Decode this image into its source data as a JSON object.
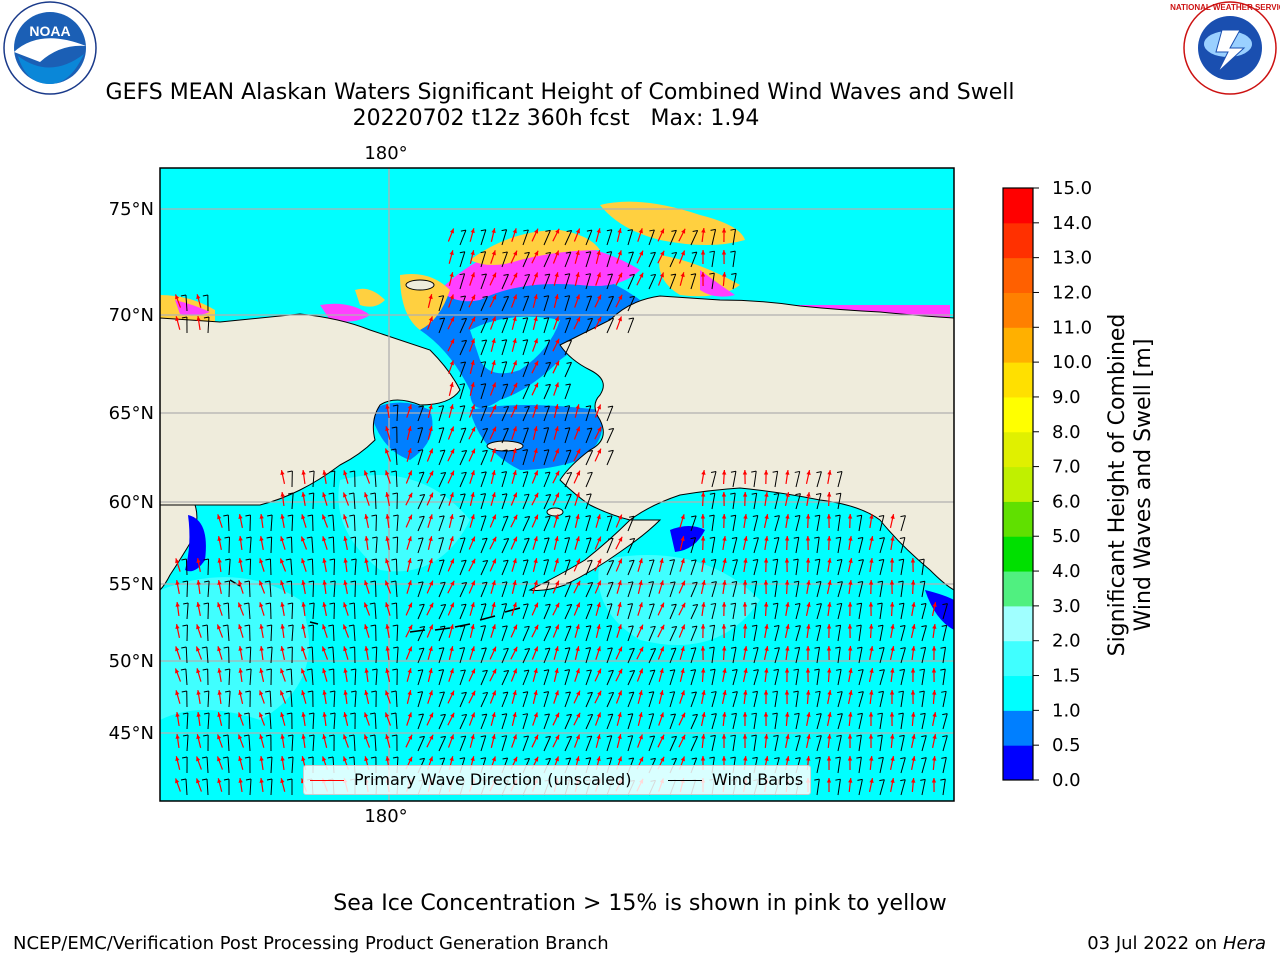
{
  "title": {
    "line1": "GEFS MEAN Alaskan Waters Significant Height of Combined Wind Waves and Swell",
    "line2": "20220702 t12z 360h fcst   Max: 1.94"
  },
  "logos": {
    "noaa_text": "NOAA",
    "nws_text": "NATIONAL WEATHER SERVICE"
  },
  "map": {
    "lat_ticks": [
      "75°N",
      "70°N",
      "65°N",
      "60°N",
      "55°N",
      "50°N",
      "45°N"
    ],
    "lon_tick_top": "180°",
    "lon_tick_bottom": "180°",
    "colors": {
      "land": "#efecdc",
      "ocean": "#00ffff",
      "ocean_light": "#40ffff",
      "shallow": "#007fff",
      "edge": "#0000ff",
      "ice_pink": "#ff40ff",
      "ice_yellow": "#ffd040",
      "grid": "#b0b0b0"
    }
  },
  "legend": {
    "wave_label": "Primary Wave Direction (unscaled)",
    "wind_label": "Wind Barbs",
    "wave_color": "#ff0000",
    "wind_color": "#000000"
  },
  "colorbar": {
    "label_line1": "Significant Height of Combined",
    "label_line2": "Wind Waves and Swell [m]",
    "ticks": [
      "0.0",
      "0.5",
      "1.0",
      "1.5",
      "2.0",
      "3.0",
      "4.0",
      "5.0",
      "6.0",
      "7.0",
      "8.0",
      "9.0",
      "10.0",
      "11.0",
      "12.0",
      "13.0",
      "14.0",
      "15.0"
    ],
    "colors": [
      "#0000ff",
      "#007fff",
      "#00ffff",
      "#40ffff",
      "#a0ffff",
      "#50f080",
      "#00e000",
      "#60e000",
      "#c0f000",
      "#e0f000",
      "#ffff00",
      "#ffe000",
      "#ffb000",
      "#ff8000",
      "#ff6000",
      "#ff3000",
      "#ff0000"
    ]
  },
  "footnote": "Sea Ice Concentration > 15% is shown in pink to yellow",
  "footer": {
    "left": "NCEP/EMC/Verification Post Processing Product Generation Branch",
    "date": "03 Jul 2022 on ",
    "machine": "Hera"
  }
}
